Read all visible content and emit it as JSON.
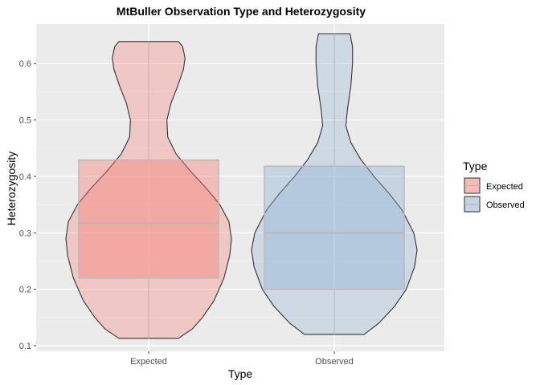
{
  "chart_data": {
    "type": "violin",
    "title": "MtBuller Observation Type and Heterozygosity",
    "xlabel": "Type",
    "ylabel": "Heterozygosity",
    "categories": [
      "Expected",
      "Observed"
    ],
    "ylim": [
      0.09,
      0.67
    ],
    "yticks": [
      0.1,
      0.2,
      0.3,
      0.4,
      0.5,
      0.6
    ],
    "ytick_labels": [
      "0.1",
      "0.2",
      "0.3",
      "0.4",
      "0.5",
      "0.6"
    ],
    "grid": true,
    "legend": {
      "title": "Type",
      "position": "right",
      "entries": [
        "Expected",
        "Observed"
      ]
    },
    "colors": {
      "Expected": "#f8766d",
      "Observed": "#8cb0d4",
      "panel": "#ebebeb",
      "grid": "#ffffff"
    },
    "series": [
      {
        "name": "Expected",
        "box": {
          "q1": 0.22,
          "median": 0.317,
          "q3": 0.429,
          "whisker_low": 0.113,
          "whisker_high": 0.639
        },
        "violin_profile": [
          [
            0.113,
            0.36
          ],
          [
            0.13,
            0.53
          ],
          [
            0.15,
            0.65
          ],
          [
            0.18,
            0.79
          ],
          [
            0.22,
            0.91
          ],
          [
            0.26,
            0.98
          ],
          [
            0.29,
            1.0
          ],
          [
            0.32,
            0.97
          ],
          [
            0.35,
            0.86
          ],
          [
            0.38,
            0.69
          ],
          [
            0.41,
            0.5
          ],
          [
            0.44,
            0.33
          ],
          [
            0.47,
            0.23
          ],
          [
            0.5,
            0.22
          ],
          [
            0.53,
            0.27
          ],
          [
            0.56,
            0.35
          ],
          [
            0.59,
            0.42
          ],
          [
            0.61,
            0.44
          ],
          [
            0.63,
            0.41
          ],
          [
            0.639,
            0.36
          ]
        ]
      },
      {
        "name": "Observed",
        "box": {
          "q1": 0.2,
          "median": 0.3,
          "q3": 0.418,
          "whisker_low": 0.12,
          "whisker_high": 0.653
        },
        "violin_profile": [
          [
            0.12,
            0.36
          ],
          [
            0.14,
            0.54
          ],
          [
            0.17,
            0.73
          ],
          [
            0.2,
            0.87
          ],
          [
            0.24,
            0.97
          ],
          [
            0.27,
            1.0
          ],
          [
            0.3,
            0.96
          ],
          [
            0.34,
            0.82
          ],
          [
            0.37,
            0.66
          ],
          [
            0.4,
            0.48
          ],
          [
            0.43,
            0.32
          ],
          [
            0.46,
            0.2
          ],
          [
            0.49,
            0.14
          ],
          [
            0.52,
            0.16
          ],
          [
            0.56,
            0.2
          ],
          [
            0.6,
            0.22
          ],
          [
            0.63,
            0.22
          ],
          [
            0.653,
            0.19
          ]
        ]
      }
    ]
  }
}
